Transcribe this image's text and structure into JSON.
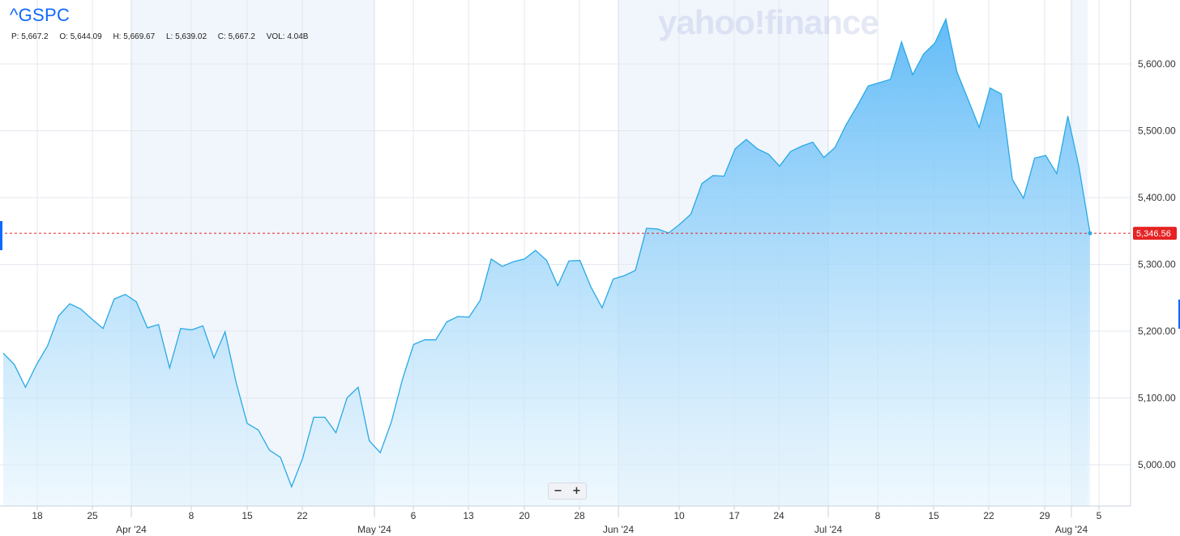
{
  "ticker": "^GSPC",
  "watermark": "yahoo!finance",
  "ohlc": {
    "p_label": "P:",
    "p_value": "5,667.2",
    "o_label": "O:",
    "o_value": "5,644.09",
    "h_label": "H:",
    "h_value": "5,669.67",
    "l_label": "L:",
    "l_value": "5,639.02",
    "c_label": "C:",
    "c_value": "5,667.2",
    "vol_label": "VOL:",
    "vol_value": "4.04B"
  },
  "zoom": {
    "minus": "−",
    "plus": "+"
  },
  "colors": {
    "line": "#29a9e6",
    "fill_top": "#5ab8f7",
    "fill_bottom": "#e4f4fd",
    "current_price": "#e62323",
    "grid": "#e3e7ee",
    "band": "#f1f6fc"
  },
  "chart_data": {
    "type": "area",
    "series": [
      {
        "values": [
          5167,
          5150,
          5116,
          5150,
          5178,
          5223,
          5241,
          5233,
          5218,
          5204,
          5248,
          5255,
          5244,
          5205,
          5210,
          5145,
          5204,
          5202,
          5208,
          5160,
          5199,
          5123,
          5062,
          5052,
          5022,
          5011,
          4967,
          5010,
          5071,
          5071,
          5048,
          5100,
          5116,
          5036,
          5018,
          5064,
          5128,
          5180,
          5187,
          5187,
          5214,
          5222,
          5221,
          5246,
          5308,
          5297,
          5304,
          5308,
          5321,
          5306,
          5268,
          5305,
          5306,
          5266,
          5235,
          5278,
          5283,
          5291,
          5354,
          5353,
          5347,
          5360,
          5375,
          5421,
          5433,
          5432,
          5473,
          5487,
          5473,
          5465,
          5447,
          5469,
          5477,
          5483,
          5460,
          5475,
          5509,
          5537,
          5567,
          5572,
          5577,
          5633,
          5584,
          5615,
          5631,
          5667,
          5588,
          5547,
          5505,
          5564,
          5555,
          5427,
          5399,
          5459,
          5463,
          5436,
          5522,
          5446,
          5346.56
        ]
      }
    ],
    "x_ticks": [
      "18",
      "25",
      "8",
      "15",
      "22",
      "6",
      "13",
      "20",
      "28",
      "10",
      "17",
      "24",
      "8",
      "15",
      "22",
      "29",
      "5"
    ],
    "month_labels": [
      "Apr '24",
      "May '24",
      "Jun '24",
      "Jul '24",
      "Aug '24"
    ],
    "y_ticks": [
      "5,000.00",
      "5,100.00",
      "5,200.00",
      "5,300.00",
      "5,400.00",
      "5,500.00",
      "5,600.00"
    ],
    "y_tick_values": [
      5000,
      5100,
      5200,
      5300,
      5400,
      5500,
      5600
    ],
    "current_price": 5346.56,
    "current_price_label": "5,346.56",
    "grid": true
  }
}
